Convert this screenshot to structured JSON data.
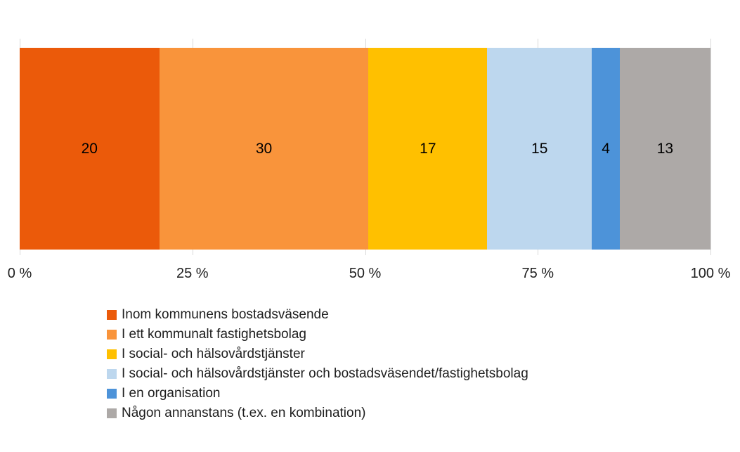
{
  "chart_data": {
    "type": "bar",
    "subtype": "stacked-horizontal-100percent",
    "title": "",
    "categories": [
      ""
    ],
    "series": [
      {
        "name": "Inom kommunens bostadsväsende",
        "values": [
          20
        ],
        "color": "#EB5A0A"
      },
      {
        "name": "I ett kommunalt fastighetsbolag",
        "values": [
          30
        ],
        "color": "#F9943B"
      },
      {
        "name": "I social- och hälsovårdstjänster",
        "values": [
          17
        ],
        "color": "#FFC000"
      },
      {
        "name": "I social- och hälsovårdstjänster och bostadsväsendet/fastighetsbolag",
        "values": [
          15
        ],
        "color": "#BDD7EE"
      },
      {
        "name": "I en organisation",
        "values": [
          4
        ],
        "color": "#4D93D9"
      },
      {
        "name": "Någon annanstans (t.ex. en kombination)",
        "values": [
          13
        ],
        "color": "#ADA9A7"
      }
    ],
    "x_axis": {
      "tick_labels": [
        "0 %",
        "25 %",
        "50 %",
        "75 %",
        "100 %"
      ],
      "range": [
        0,
        100
      ],
      "gridlines": true,
      "gridline_color": "#D9D9D9"
    },
    "legend_position": "bottom-left",
    "background_color": "#FFFFFF",
    "data_label_color": "#000000"
  }
}
